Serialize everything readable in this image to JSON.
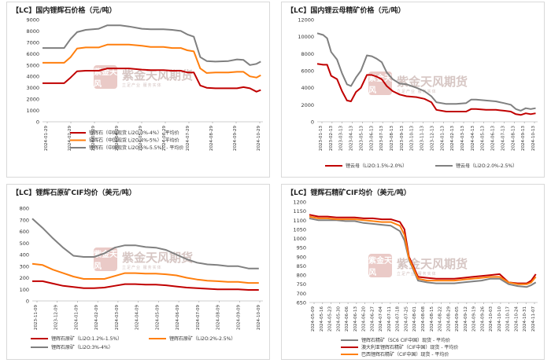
{
  "watermark": {
    "text": "紫金天风期货",
    "seal": "紫金天风",
    "subtext": "立足产业 服务实体"
  },
  "chart_data": [
    {
      "title": "【LC】国内锂辉石价格（元/吨）",
      "type": "line",
      "ylim": [
        0,
        9000
      ],
      "yticks": [
        0,
        1000,
        2000,
        3000,
        4000,
        5000,
        6000,
        7000,
        8000,
        9000
      ],
      "xlim": [
        0,
        10.2
      ],
      "xticks": [
        "2024-01-29",
        "2024-02-29",
        "2024-03-29",
        "2024-04-29",
        "2024-05-29",
        "2024-06-29",
        "2024-07-29",
        "2024-08-29",
        "2024-09-29",
        "2024-10-29"
      ],
      "legend": [
        "锂辉石（中国现货 Li2O:3%-4%）- 平均价",
        "锂辉石（中国现货 Li2O:4%-5%）- 平均价",
        "锂辉石（中国现货 Li2O:5%-5.5%）- 平均价"
      ],
      "series": [
        {
          "name": "锂辉石（中国现货 Li2O:3%-4%）- 平均价",
          "color": "#c00000",
          "x": [
            0,
            0.6,
            1.0,
            1.3,
            1.6,
            2.0,
            2.6,
            3.0,
            3.6,
            4.0,
            4.6,
            5.0,
            5.6,
            6.0,
            6.4,
            6.7,
            7.0,
            7.3,
            7.6,
            8.0,
            8.6,
            9.0,
            9.3,
            9.6,
            9.9,
            10.1
          ],
          "y": [
            3400,
            3400,
            3400,
            3900,
            4450,
            4500,
            4500,
            4700,
            4700,
            4700,
            4600,
            4550,
            4550,
            4500,
            4500,
            4350,
            4350,
            3200,
            3000,
            2950,
            2950,
            2950,
            3050,
            2950,
            2650,
            2800
          ]
        },
        {
          "name": "锂辉石（中国现货 Li2O:4%-5%）- 平均价",
          "color": "#ff7f0e",
          "x": [
            0,
            0.6,
            1.0,
            1.3,
            1.6,
            2.0,
            2.6,
            3.0,
            3.6,
            4.0,
            4.6,
            5.0,
            5.6,
            6.0,
            6.4,
            6.7,
            7.0,
            7.3,
            7.6,
            8.0,
            8.6,
            9.0,
            9.3,
            9.6,
            9.9,
            10.1
          ],
          "y": [
            5200,
            5200,
            5200,
            5700,
            6450,
            6550,
            6550,
            6800,
            6800,
            6800,
            6700,
            6600,
            6600,
            6500,
            6500,
            6300,
            6200,
            4700,
            4300,
            4350,
            4350,
            4400,
            4400,
            4000,
            3900,
            4100
          ]
        },
        {
          "name": "锂辉石（中国现货 Li2O:5%-5.5%）- 平均价",
          "color": "#7f7f7f",
          "x": [
            0,
            0.6,
            1.0,
            1.3,
            1.6,
            2.0,
            2.6,
            3.0,
            3.6,
            4.0,
            4.6,
            5.0,
            5.6,
            6.0,
            6.4,
            6.7,
            7.0,
            7.3,
            7.6,
            8.0,
            8.6,
            9.0,
            9.3,
            9.6,
            9.9,
            10.1
          ],
          "y": [
            6500,
            6500,
            6500,
            7300,
            7900,
            8100,
            8200,
            8500,
            8500,
            8400,
            8200,
            8150,
            8150,
            8100,
            8000,
            7700,
            7500,
            5700,
            5350,
            5300,
            5350,
            5500,
            5450,
            5000,
            5100,
            5300
          ]
        }
      ]
    },
    {
      "title": "【LC】国内锂云母精矿价格（元/吨）",
      "type": "line",
      "ylim": [
        0,
        12000
      ],
      "yticks": [
        0,
        2000,
        4000,
        6000,
        8000,
        10000,
        12000
      ],
      "xlim": [
        0,
        22.2
      ],
      "xticks": [
        "2023-01-13",
        "2023-02-13",
        "2023-03-13",
        "2023-04-13",
        "2023-05-13",
        "2023-06-13",
        "2023-07-13",
        "2023-08-13",
        "2023-09-13",
        "2023-10-13",
        "2023-11-13",
        "2023-12-13",
        "2024-01-13",
        "2024-02-13",
        "2024-03-13",
        "2024-04-13",
        "2024-05-13",
        "2024-06-13",
        "2024-07-13",
        "2024-08-13",
        "2024-09-13",
        "2024-10-13"
      ],
      "legend": [
        "锂云母（Li2O:1.5%-2.0%）",
        "锂云母（Li2O:2.0%-2.5%）"
      ],
      "series": [
        {
          "name": "锂云母（Li2O:1.5%-2.0%）",
          "color": "#c00000",
          "x": [
            0,
            0.6,
            1.0,
            1.4,
            2.0,
            2.5,
            3.0,
            3.4,
            3.9,
            4.4,
            5.0,
            5.5,
            6.0,
            6.5,
            7.0,
            7.6,
            8.3,
            9.0,
            10.0,
            10.8,
            11.5,
            12.0,
            13.0,
            14.0,
            15.0,
            15.5,
            16.0,
            17.0,
            18.0,
            18.8,
            19.5,
            20.0,
            20.5,
            21.0,
            21.5,
            22.0
          ],
          "y": [
            6800,
            6700,
            6700,
            5400,
            5000,
            3600,
            2500,
            2400,
            3500,
            4000,
            5500,
            5500,
            5300,
            5000,
            4200,
            3600,
            3200,
            3000,
            2900,
            2700,
            2300,
            1400,
            1200,
            1200,
            1200,
            1500,
            1500,
            1400,
            1400,
            1300,
            1200,
            900,
            800,
            1000,
            900,
            1000
          ]
        },
        {
          "name": "锂云母（Li2O:2.0%-2.5%）",
          "color": "#808080",
          "x": [
            0,
            0.6,
            1.0,
            1.4,
            2.0,
            2.5,
            3.0,
            3.4,
            3.9,
            4.4,
            5.0,
            5.5,
            6.0,
            6.5,
            7.0,
            7.6,
            8.3,
            9.0,
            10.0,
            10.8,
            11.5,
            12.0,
            13.0,
            14.0,
            15.0,
            15.5,
            16.0,
            17.0,
            18.0,
            18.8,
            19.5,
            20.0,
            20.5,
            21.0,
            21.5,
            22.0
          ],
          "y": [
            10400,
            10200,
            9800,
            8200,
            7300,
            5700,
            4400,
            4200,
            5200,
            6000,
            7800,
            7700,
            7400,
            7000,
            5800,
            5000,
            4500,
            4400,
            4000,
            3600,
            3000,
            2300,
            2100,
            2100,
            2200,
            2600,
            2600,
            2500,
            2400,
            2200,
            2000,
            1500,
            1300,
            1600,
            1500,
            1600
          ]
        }
      ]
    },
    {
      "title": "【LC】锂辉石原矿CIF均价（美元/吨）",
      "type": "line",
      "ylim": [
        0,
        800
      ],
      "yticks": [
        0,
        100,
        200,
        300,
        400,
        500,
        600,
        700,
        800
      ],
      "xlim": [
        0,
        11.2
      ],
      "xticks": [
        "2023-11-09",
        "2023-12-09",
        "2024-01-09",
        "2024-02-09",
        "2024-03-09",
        "2024-04-09",
        "2024-05-09",
        "2024-06-09",
        "2024-07-09",
        "2024-08-09",
        "2024-09-09",
        "2024-10-09"
      ],
      "legend": [
        "锂辉石原矿（Li2O:1.2%-1.5%）",
        "锂辉石原矿（Li2O:2%-2.5%）",
        "锂辉石原矿（Li2O:3%-4%）"
      ],
      "series": [
        {
          "name": "锂辉石原矿（Li2O:1.2%-1.5%）",
          "color": "#c00000",
          "x": [
            0,
            0.5,
            1.0,
            1.5,
            2.0,
            2.5,
            3.0,
            3.5,
            4.0,
            4.5,
            5.0,
            5.5,
            6.0,
            6.5,
            7.0,
            7.5,
            8.0,
            8.5,
            9.0,
            9.5,
            10.0,
            10.5,
            11.0
          ],
          "y": [
            170,
            170,
            150,
            130,
            120,
            110,
            110,
            115,
            130,
            145,
            145,
            140,
            140,
            135,
            125,
            115,
            110,
            105,
            100,
            100,
            100,
            95,
            95
          ]
        },
        {
          "name": "锂辉石原矿（Li2O:2%-2.5%）",
          "color": "#ff7f0e",
          "x": [
            0,
            0.5,
            1.0,
            1.5,
            2.0,
            2.5,
            3.0,
            3.5,
            4.0,
            4.5,
            5.0,
            5.5,
            6.0,
            6.5,
            7.0,
            7.5,
            8.0,
            8.5,
            9.0,
            9.5,
            10.0,
            10.5,
            11.0
          ],
          "y": [
            320,
            310,
            270,
            240,
            210,
            190,
            190,
            190,
            215,
            240,
            240,
            235,
            235,
            230,
            220,
            200,
            185,
            175,
            170,
            165,
            165,
            155,
            155
          ]
        },
        {
          "name": "锂辉石原矿（Li2O:3%-4%）",
          "color": "#808080",
          "x": [
            0,
            0.5,
            1.0,
            1.5,
            2.0,
            2.5,
            3.0,
            3.5,
            4.0,
            4.5,
            5.0,
            5.5,
            6.0,
            6.5,
            7.0,
            7.5,
            8.0,
            8.5,
            9.0,
            9.5,
            10.0,
            10.5,
            11.0
          ],
          "y": [
            710,
            630,
            540,
            460,
            390,
            380,
            380,
            410,
            460,
            480,
            480,
            465,
            460,
            440,
            400,
            360,
            330,
            315,
            310,
            300,
            300,
            280,
            280
          ]
        }
      ]
    },
    {
      "title": "【LC】锂辉石精矿CIF均价（美元/吨）",
      "type": "line",
      "ylim": [
        650,
        1200
      ],
      "yticks": [
        650,
        700,
        750,
        800,
        850,
        900,
        950,
        1000,
        1050,
        1100,
        1150,
        1200
      ],
      "xlim": [
        0,
        25.2
      ],
      "xticks": [
        "2024-05-09",
        "2024-05-16",
        "2024-05-23",
        "2024-05-30",
        "2024-06-06",
        "2024-06-13",
        "2024-06-20",
        "2024-06-27",
        "2024-07-04",
        "2024-07-11",
        "2024-07-18",
        "2024-07-25",
        "2024-08-01",
        "2024-08-08",
        "2024-08-15",
        "2024-08-22",
        "2024-08-29",
        "2024-09-05",
        "2024-09-12",
        "2024-09-19",
        "2024-09-26",
        "2024-10-03",
        "2024-10-10",
        "2024-10-17",
        "2024-10-24",
        "2024-10-31",
        "2024-11-07"
      ],
      "legend": [
        "锂辉石精矿（SC6 CIF中国）现货 - 平均价",
        "澳大利亚锂辉石精矿（CIF中国）现货 - 平均价",
        "巴西锂辉石精矿（CIF中国）现货 - 平均价"
      ],
      "series": [
        {
          "name": "锂辉石精矿（SC6 CIF中国）现货 - 平均价",
          "color": "#808080",
          "x": [
            0,
            1,
            2,
            3,
            4,
            5,
            6,
            7,
            8,
            9,
            10,
            10.5,
            11,
            12,
            13,
            14,
            15,
            16,
            17,
            18,
            19,
            20,
            21,
            22,
            23,
            24,
            24.5,
            25
          ],
          "y": [
            1110,
            1100,
            1100,
            1100,
            1095,
            1095,
            1085,
            1080,
            1075,
            1070,
            1040,
            990,
            885,
            770,
            760,
            755,
            755,
            755,
            760,
            765,
            770,
            780,
            780,
            750,
            740,
            735,
            745,
            760
          ]
        },
        {
          "name": "澳大利亚锂辉石精矿（CIF中国）现货 - 平均价",
          "color": "#c00000",
          "x": [
            0,
            1,
            2,
            3,
            4,
            5,
            6,
            7,
            8,
            9,
            10,
            10.5,
            11,
            12,
            13,
            14,
            15,
            16,
            17,
            18,
            19,
            20,
            21,
            22,
            23,
            24,
            24.5,
            25
          ],
          "y": [
            1130,
            1120,
            1120,
            1115,
            1115,
            1115,
            1110,
            1110,
            1105,
            1105,
            1090,
            1050,
            900,
            790,
            785,
            780,
            780,
            780,
            785,
            790,
            795,
            800,
            805,
            760,
            755,
            755,
            770,
            805
          ]
        },
        {
          "name": "巴西锂辉石精矿（CIF中国）现货 - 平均价",
          "color": "#ff7f0e",
          "x": [
            0,
            1,
            2,
            3,
            4,
            5,
            6,
            7,
            8,
            9,
            10,
            10.5,
            11,
            12,
            13,
            14,
            15,
            16,
            17,
            18,
            19,
            20,
            21,
            22,
            23,
            24,
            24.5,
            25
          ],
          "y": [
            1120,
            1110,
            1110,
            1105,
            1105,
            1105,
            1100,
            1095,
            1090,
            1090,
            1070,
            1020,
            890,
            780,
            770,
            770,
            770,
            770,
            775,
            780,
            785,
            790,
            790,
            760,
            750,
            750,
            760,
            790
          ]
        }
      ]
    }
  ]
}
